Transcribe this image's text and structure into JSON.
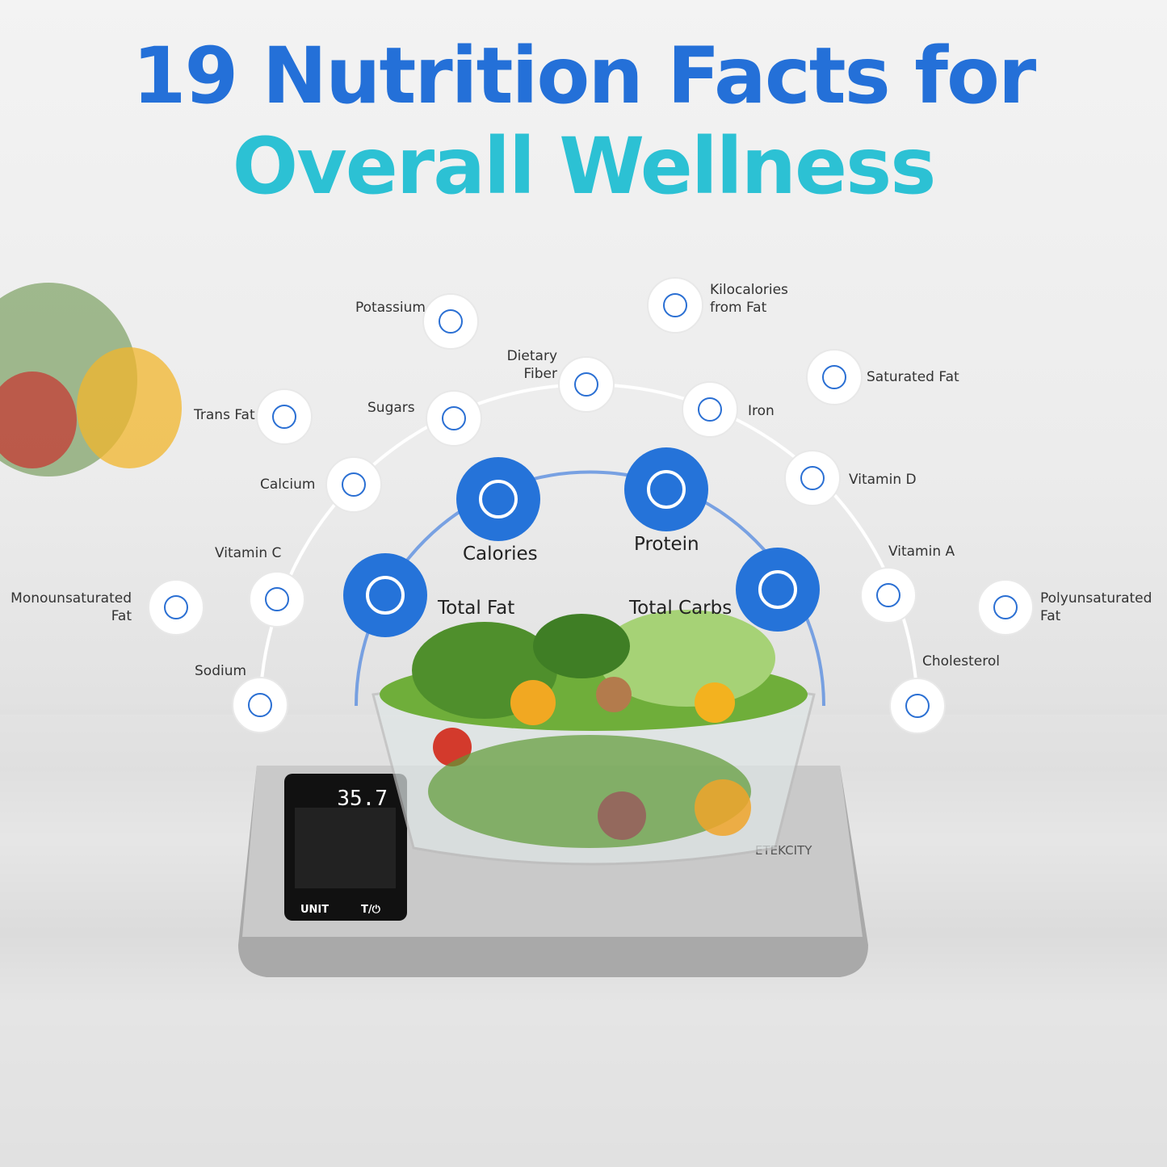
{
  "header": {
    "line1": "19 Nutrition Facts for",
    "line2": "Overall Wellness"
  },
  "primary_nutrients": [
    {
      "label": "Total Fat"
    },
    {
      "label": "Calories"
    },
    {
      "label": "Protein"
    },
    {
      "label": "Total Carbs"
    }
  ],
  "secondary_nutrients": [
    {
      "label": "Potassium"
    },
    {
      "label": "Kilocalories\nfrom Fat"
    },
    {
      "label": "Dietary\nFiber"
    },
    {
      "label": "Saturated Fat"
    },
    {
      "label": "Sugars"
    },
    {
      "label": "Iron"
    },
    {
      "label": "Trans Fat"
    },
    {
      "label": "Calcium"
    },
    {
      "label": "Vitamin D"
    },
    {
      "label": "Vitamin C"
    },
    {
      "label": "Vitamin A"
    },
    {
      "label": "Monounsaturated\nFat"
    },
    {
      "label": "Polyunsaturated\nFat"
    },
    {
      "label": "Sodium"
    },
    {
      "label": "Cholesterol"
    }
  ],
  "scale": {
    "display_value": "35.7",
    "buttons": [
      "UNIT",
      "T/⏻"
    ],
    "brand": "ETEKCITY"
  }
}
